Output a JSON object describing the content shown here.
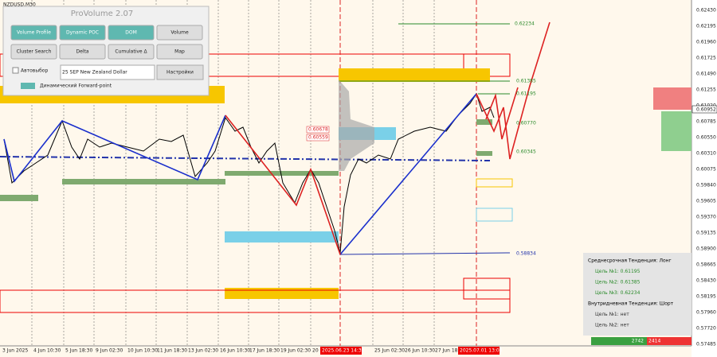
{
  "symbol": "NZDUSD,M30",
  "panel": {
    "title": "ProVolume 2.07",
    "buttons": [
      "Volume Profile",
      "Dynamic POC",
      "DOM",
      "Volume",
      "Cluster Search",
      "Delta",
      "Cumulative Δ",
      "Map"
    ],
    "auto_select": "Автовыбор",
    "instrument": "25 SEP New Zealand Dollar",
    "settings": "Настройки",
    "forward_point": "Динамический Forward-point"
  },
  "price_axis": [
    "0.62430",
    "0.62195",
    "0.61960",
    "0.61725",
    "0.61490",
    "0.61255",
    "0.61020",
    "0.60785",
    "0.60550",
    "0.60310",
    "0.60075",
    "0.59840",
    "0.59605",
    "0.59370",
    "0.59135",
    "0.58900",
    "0.58665",
    "0.58430",
    "0.58195",
    "0.57960",
    "0.57720",
    "0.57485"
  ],
  "current_price": "0.60952",
  "time_axis": [
    "3 Jun 2025",
    "4 Jun 10:30",
    "5 Jun 18:30",
    "9 Jun 02:30",
    "10 Jun 10:30",
    "11 Jun 18:30",
    "13 Jun 02:30",
    "16 Jun 10:30",
    "17 Jun 18:30",
    "19 Jun 02:30",
    "20",
    "25 Jun 02:30",
    "26 Jun 10:30",
    "27 Jun 18:"
  ],
  "time_markers": [
    "2025.06.23 14:30",
    "2025.07.01 13:00"
  ],
  "levels": [
    "0.62234",
    "0.61385",
    "0.61195",
    "0.60770",
    "0.60345",
    "0.58834",
    "0.60678",
    "0.60559"
  ],
  "info": {
    "lines": [
      "Среднесрочная Тенденция: Лонг",
      "Цель №1: 0.61195",
      "Цель №2: 0.61385",
      "Цель №3: 0.62234",
      "Внутридневная Тенденция: Шорт",
      "Цель №1: нет",
      "Цель №2: нет"
    ],
    "buy": "2742",
    "sell": "2414"
  }
}
